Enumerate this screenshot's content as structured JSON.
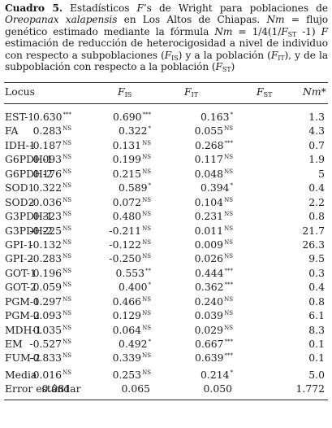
{
  "caption": {
    "label": "Cuadro 5.",
    "t1": " Estadísticos ",
    "f_sym": "F",
    "t2": "’s de Wright para poblaciones de ",
    "species": "Oreopanax xalapensis",
    "t3": " en Los Altos de Chiapas. ",
    "nm_sym": "Nm",
    "t4": " = flujo genético estimado mediante la fórmula ",
    "nm_sym2": "Nm",
    "t5": " = 1/4(1/",
    "fst_f": "F",
    "fst_sub": "ST",
    "t6": " -1)  ",
    "f2": "F",
    "t7": " estimación de reducción de heterocigosidad a nivel de individuo con respecto a subpoblaciones (",
    "fis_f": "F",
    "fis_sub": "IS",
    "t8": ") y a la población (",
    "fit_f": "F",
    "fit_sub": "IT",
    "t9": "), y de la subpoblación con respecto a la población (",
    "fst2_f": "F",
    "fst2_sub": "ST",
    "t10": ")"
  },
  "headers": {
    "locus": "Locus",
    "fis_f": "F",
    "fis_sub": "IS",
    "fit_f": "F",
    "fit_sub": "IT",
    "fst_f": "F",
    "fst_sub": "ST",
    "nm": "Nm*"
  },
  "rows": [
    {
      "locus": "EST-1",
      "fis": "0.630",
      "fis_s": "***",
      "fit": "0.690",
      "fit_s": "***",
      "fst": "0.163",
      "fst_s": "*",
      "nm": "1.3"
    },
    {
      "locus": "FA",
      "fis": "0.283",
      "fis_s": "NS",
      "fit": "0.322",
      "fit_s": "*",
      "fst": "0.055",
      "fst_s": "NS",
      "nm": "4.3"
    },
    {
      "locus": "IDH-1",
      "fis": "-0.187",
      "fis_s": "NS",
      "fit": "0.131",
      "fit_s": "NS",
      "fst": "0.268",
      "fst_s": "***",
      "nm": "0.7"
    },
    {
      "locus": "G6PDH-1",
      "fis": "0.093",
      "fis_s": "NS",
      "fit": "0.199",
      "fit_s": "NS",
      "fst": "0.117",
      "fst_s": "NS",
      "nm": "1.9"
    },
    {
      "locus": "G6PDH-2",
      "fis": "0.176",
      "fis_s": "NS",
      "fit": "0.215",
      "fit_s": "NS",
      "fst": "0.048",
      "fst_s": "NS",
      "nm": "5"
    },
    {
      "locus": "SOD1",
      "fis": "0.322",
      "fis_s": "NS",
      "fit": "0.589",
      "fit_s": "*",
      "fst": "0.394",
      "fst_s": "*",
      "nm": "0.4"
    },
    {
      "locus": "SOD2",
      "fis": "-0.036",
      "fis_s": "NS",
      "fit": "0.072",
      "fit_s": "NS",
      "fst": "0.104",
      "fst_s": "NS",
      "nm": "2.2"
    },
    {
      "locus": "G3PDH-1",
      "fis": "0.323",
      "fis_s": "NS",
      "fit": "0.480",
      "fit_s": "NS",
      "fst": "0.231",
      "fst_s": "NS",
      "nm": "0.8"
    },
    {
      "locus": "G3PDH-2",
      "fis": "-0.225",
      "fis_s": "NS",
      "fit": "-0.211",
      "fit_s": "NS",
      "fst": "0.011",
      "fst_s": "NS",
      "nm": "21.7"
    },
    {
      "locus": "GPI-1",
      "fis": "-0.132",
      "fis_s": "NS",
      "fit": "-0.122",
      "fit_s": "NS",
      "fst": "0.009",
      "fst_s": "NS",
      "nm": "26.3"
    },
    {
      "locus": "GPI-2",
      "fis": "-0.283",
      "fis_s": "NS",
      "fit": "-0.250",
      "fit_s": "NS",
      "fst": "0.026",
      "fst_s": "NS",
      "nm": "9.5"
    },
    {
      "locus": "GOT-1",
      "fis": "0.196",
      "fis_s": "NS",
      "fit": "0.553",
      "fit_s": "**",
      "fst": "0.444",
      "fst_s": "***",
      "nm": "0.3"
    },
    {
      "locus": "GOT-2",
      "fis": "0.059",
      "fis_s": "NS",
      "fit": "0.400",
      "fit_s": "*",
      "fst": "0.362",
      "fst_s": "***",
      "nm": "0.4"
    },
    {
      "locus": "PGM-1",
      "fis": "0.297",
      "fis_s": "NS",
      "fit": "0.466",
      "fit_s": "NS",
      "fst": "0.240",
      "fst_s": "NS",
      "nm": "0.8"
    },
    {
      "locus": "PGM-2",
      "fis": "0.093",
      "fis_s": "NS",
      "fit": "0.129",
      "fit_s": "NS",
      "fst": "0.039",
      "fst_s": "NS",
      "nm": "6.1"
    },
    {
      "locus": "MDH-1",
      "fis": "0.035",
      "fis_s": "NS",
      "fit": "0.064",
      "fit_s": "NS",
      "fst": "0.029",
      "fst_s": "NS",
      "nm": "8.3"
    },
    {
      "locus": "EM",
      "fis": "-0.527",
      "fis_s": "NS",
      "fit": "0.492",
      "fit_s": "*",
      "fst": "0.667",
      "fst_s": "***",
      "nm": "0.1"
    },
    {
      "locus": "FUM-2",
      "fis": "-0.833",
      "fis_s": "NS",
      "fit": "0.339",
      "fit_s": "NS",
      "fst": "0.639",
      "fst_s": "***",
      "nm": "0.1"
    }
  ],
  "summary": [
    {
      "locus": "Media",
      "fis": "0.016",
      "fis_s": "NS",
      "fit": "0.253",
      "fit_s": "NS",
      "fst": "0.214",
      "fst_s": "*",
      "nm": "5.0"
    },
    {
      "locus": "Error estándar",
      "fis": "0.081",
      "fis_s": "",
      "fit": "0.065",
      "fit_s": "",
      "fst": "0.050",
      "fst_s": "",
      "nm": "1.772"
    }
  ]
}
